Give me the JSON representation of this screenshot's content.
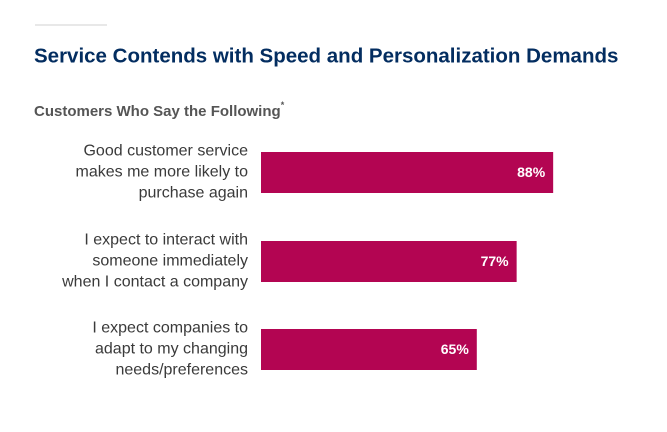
{
  "chart_data": {
    "type": "hbar",
    "title": "Service Contends with Speed and Personalization Demands",
    "subtitle": "Customers Who Say the Following",
    "subtitle_mark": "*",
    "categories": [
      [
        "Good customer service",
        "makes me more likely to",
        "purchase again"
      ],
      [
        "I expect to interact with",
        "someone immediately",
        "when I contact a company"
      ],
      [
        "I expect companies to",
        "adapt to my changing",
        "needs/preferences"
      ]
    ],
    "values": [
      88,
      77,
      65
    ],
    "value_labels": [
      "88%",
      "77%",
      "65%"
    ],
    "color": "#b30552",
    "xlim": [
      0,
      100
    ]
  }
}
